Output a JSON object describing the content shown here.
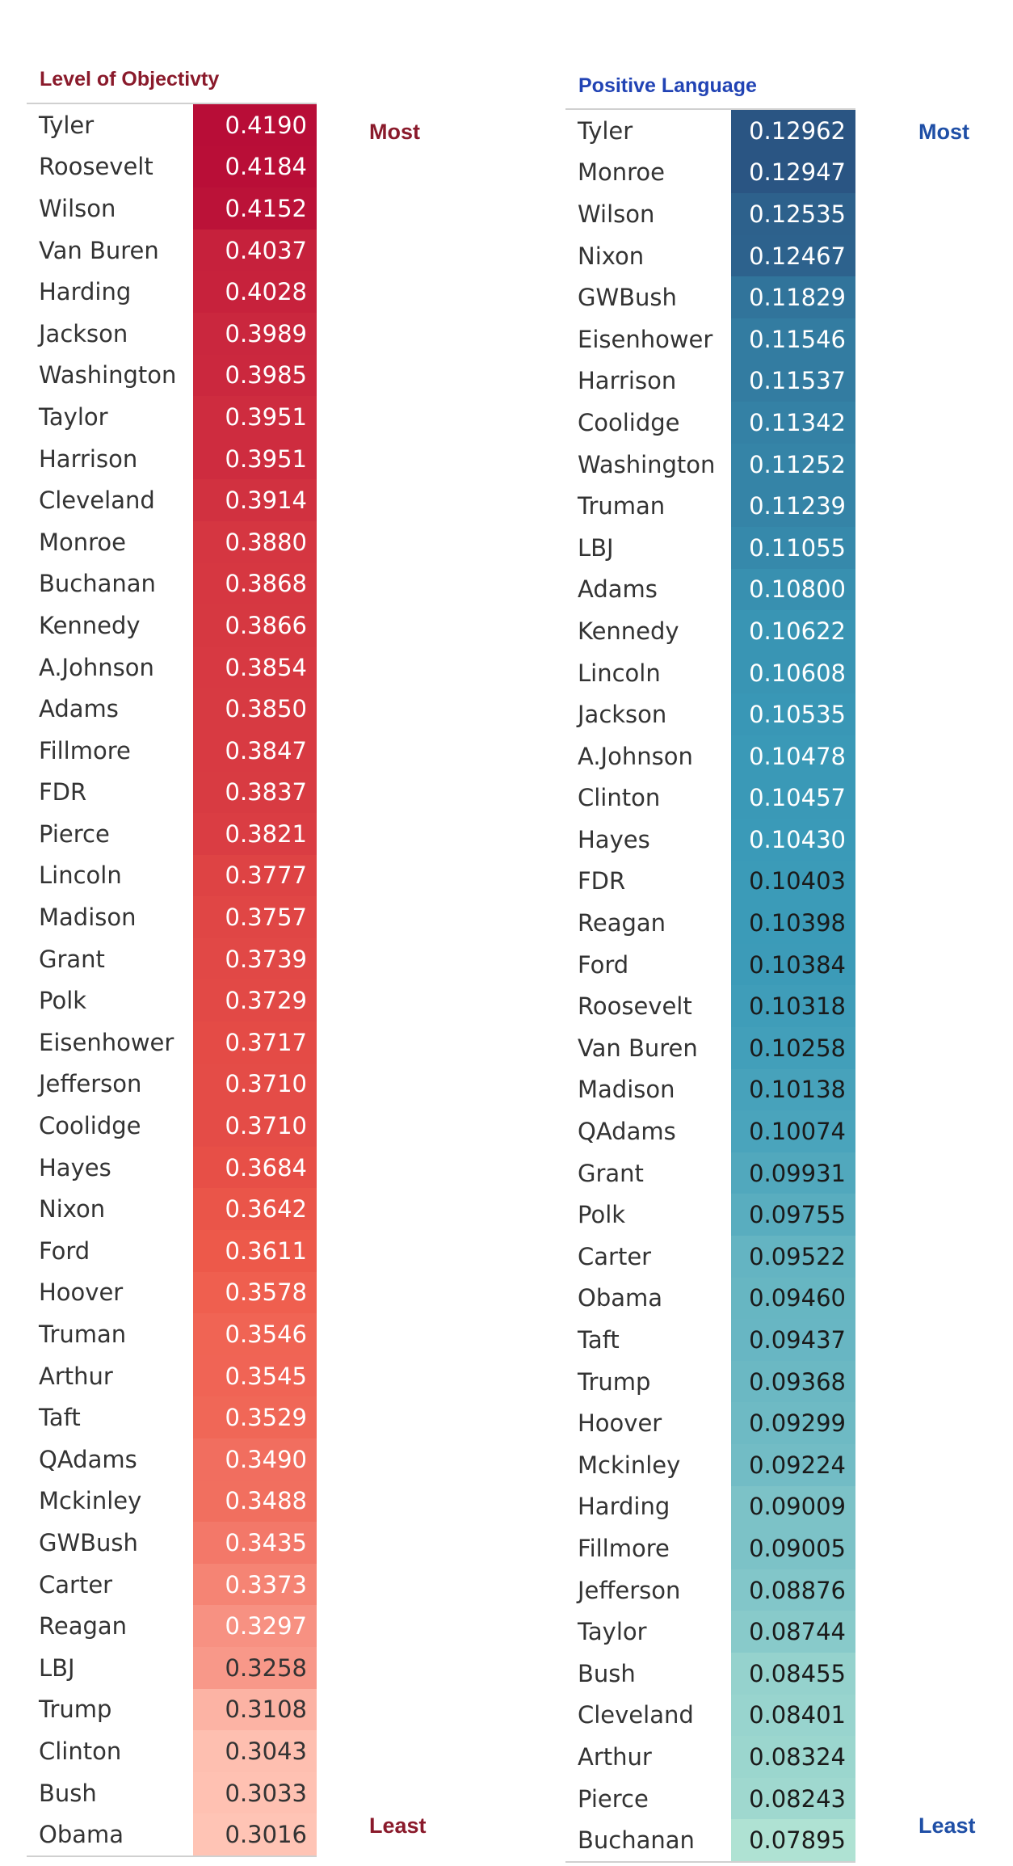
{
  "chart_data": [
    {
      "type": "table",
      "title": "Level of Objectivty",
      "top_label": "Most",
      "bottom_label": "Least",
      "colors": {
        "title": "#8a1a2b",
        "labels": "#8a1a2b",
        "scale_high": "#b80d37",
        "scale_mid": "#ee5a4a",
        "scale_low": "#ffc4b5"
      },
      "categories": [
        "Tyler",
        "Roosevelt",
        "Wilson",
        "Van Buren",
        "Harding",
        "Jackson",
        "Washington",
        "Taylor",
        "Harrison",
        "Cleveland",
        "Monroe",
        "Buchanan",
        "Kennedy",
        "A.Johnson",
        "Adams",
        "Fillmore",
        "FDR",
        "Pierce",
        "Lincoln",
        "Madison",
        "Grant",
        "Polk",
        "Eisenhower",
        "Jefferson",
        "Coolidge",
        "Hayes",
        "Nixon",
        "Ford",
        "Hoover",
        "Truman",
        "Arthur",
        "Taft",
        "QAdams",
        "Mckinley",
        "GWBush",
        "Carter",
        "Reagan",
        "LBJ",
        "Trump",
        "Clinton",
        "Bush",
        "Obama"
      ],
      "values": [
        "0.4190",
        "0.4184",
        "0.4152",
        "0.4037",
        "0.4028",
        "0.3989",
        "0.3985",
        "0.3951",
        "0.3951",
        "0.3914",
        "0.3880",
        "0.3868",
        "0.3866",
        "0.3854",
        "0.3850",
        "0.3847",
        "0.3837",
        "0.3821",
        "0.3777",
        "0.3757",
        "0.3739",
        "0.3729",
        "0.3717",
        "0.3710",
        "0.3710",
        "0.3684",
        "0.3642",
        "0.3611",
        "0.3578",
        "0.3546",
        "0.3545",
        "0.3529",
        "0.3490",
        "0.3488",
        "0.3435",
        "0.3373",
        "0.3297",
        "0.3258",
        "0.3108",
        "0.3043",
        "0.3033",
        "0.3016"
      ]
    },
    {
      "type": "table",
      "title": "Positive Language",
      "top_label": "Most",
      "bottom_label": "Least",
      "colors": {
        "title": "#2143b4",
        "labels": "#1f4fa6",
        "scale_high": "#2a5583",
        "scale_mid": "#3a9ab8",
        "scale_low": "#afe2d3"
      },
      "categories": [
        "Tyler",
        "Monroe",
        "Wilson",
        "Nixon",
        "GWBush",
        "Eisenhower",
        "Harrison",
        "Coolidge",
        "Washington",
        "Truman",
        "LBJ",
        "Adams",
        "Kennedy",
        "Lincoln",
        "Jackson",
        "A.Johnson",
        "Clinton",
        "Hayes",
        "FDR",
        "Reagan",
        "Ford",
        "Roosevelt",
        "Van Buren",
        "Madison",
        "QAdams",
        "Grant",
        "Polk",
        "Carter",
        "Obama",
        "Taft",
        "Trump",
        "Hoover",
        "Mckinley",
        "Harding",
        "Fillmore",
        "Jefferson",
        "Taylor",
        "Bush",
        "Cleveland",
        "Arthur",
        "Pierce",
        "Buchanan"
      ],
      "values": [
        "0.12962",
        "0.12947",
        "0.12535",
        "0.12467",
        "0.11829",
        "0.11546",
        "0.11537",
        "0.11342",
        "0.11252",
        "0.11239",
        "0.11055",
        "0.10800",
        "0.10622",
        "0.10608",
        "0.10535",
        "0.10478",
        "0.10457",
        "0.10430",
        "0.10403",
        "0.10398",
        "0.10384",
        "0.10318",
        "0.10258",
        "0.10138",
        "0.10074",
        "0.09931",
        "0.09755",
        "0.09522",
        "0.09460",
        "0.09437",
        "0.09368",
        "0.09299",
        "0.09224",
        "0.09009",
        "0.09005",
        "0.08876",
        "0.08744",
        "0.08455",
        "0.08401",
        "0.08324",
        "0.08243",
        "0.07895"
      ]
    }
  ]
}
